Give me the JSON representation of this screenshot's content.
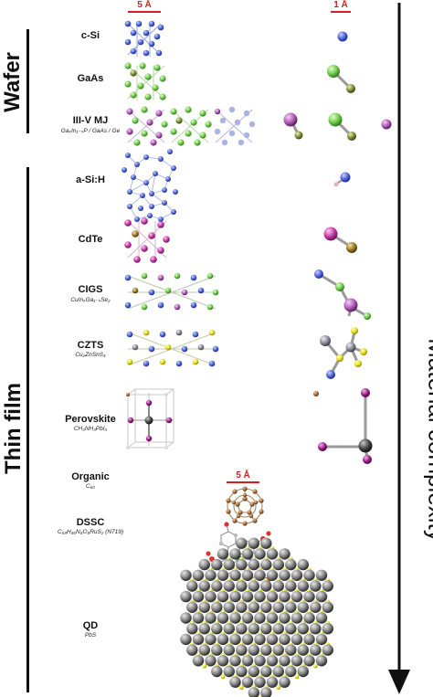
{
  "groups": [
    {
      "label": "Wafer"
    },
    {
      "label": "Thin film"
    }
  ],
  "materials": [
    {
      "name": "c-Si",
      "formula": ""
    },
    {
      "name": "GaAs",
      "formula": ""
    },
    {
      "name": "III-V MJ",
      "formula": "GaₓIn₁₋ₓP / GaAs / Ge"
    },
    {
      "name": "a-Si:H",
      "formula": ""
    },
    {
      "name": "CdTe",
      "formula": ""
    },
    {
      "name": "CIGS",
      "formula": "CuInₓGa₁₋ₓSe₂"
    },
    {
      "name": "CZTS",
      "formula": "Cu₂ZnSnS₄"
    },
    {
      "name": "Perovskite",
      "formula": "CH₃NH₃PbI₃"
    },
    {
      "name": "Organic",
      "formula": "C₆₀"
    },
    {
      "name": "DSSC",
      "formula": "C₅₈H₈₆N₈O₈RuS₂ (N719)"
    },
    {
      "name": "QD",
      "formula": "PbS"
    }
  ],
  "scale_bars": {
    "crystal": "5 Å",
    "molecule": "5 Å",
    "unit_cell": "1 Å"
  },
  "axis": {
    "label": "Material complexity"
  },
  "colors": {
    "Si": "#4b63d8",
    "Ga": "#6fc94a",
    "As": "#7a8a3a",
    "In": "#b05ab4",
    "Cd": "#c23aa8",
    "Te": "#9a7a2a",
    "Cu": "#3a59c8",
    "Se": "#7fc94a",
    "Zn": "#8a8a9a",
    "S": "#e8e020",
    "Pb": "#444444",
    "I": "#9a1f8a",
    "C": "#a06a3a",
    "scale_red": "#d21f1f"
  }
}
